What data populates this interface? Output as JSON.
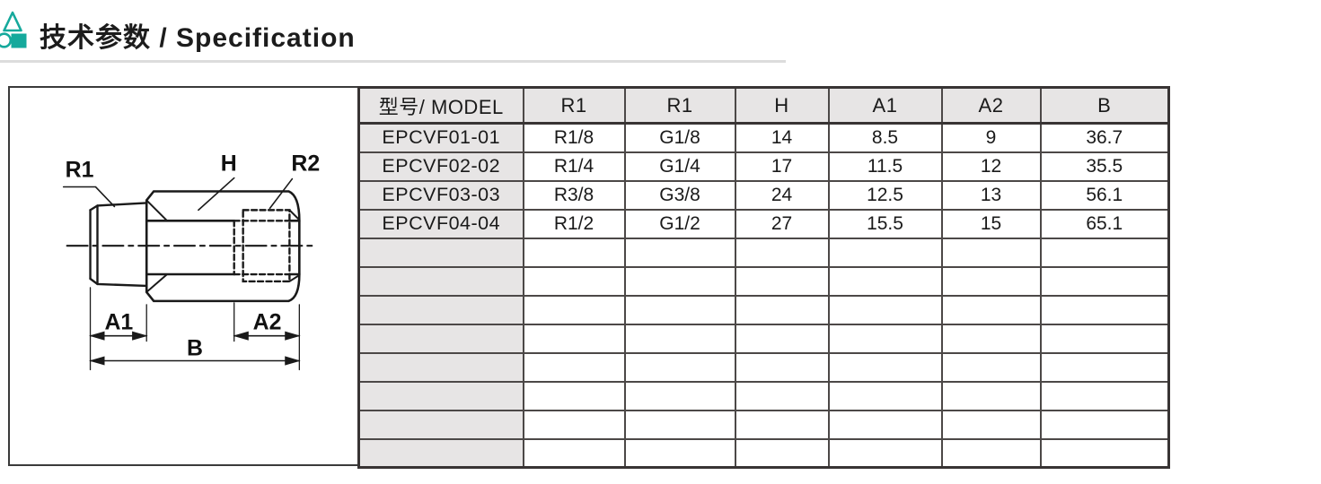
{
  "header": {
    "title": "技术参数 / Specification",
    "icon": "triangle-circle-square-logo-icon",
    "accent_color": "#15a99c"
  },
  "diagram": {
    "type": "technical-drawing",
    "description": "Side view of a pneumatic check-valve fitting: male taper thread R1, hex body H, hidden female thread R2 (dashed), with dimensions A1, A2 and overall length B",
    "labels": {
      "r1": "R1",
      "h": "H",
      "r2": "R2",
      "a1": "A1",
      "a2": "A2",
      "b": "B"
    }
  },
  "table": {
    "columns": [
      "型号/ MODEL",
      "R1",
      "R1",
      "H",
      "A1",
      "A2",
      "B"
    ],
    "rows": [
      [
        "EPCVF01-01",
        "R1/8",
        "G1/8",
        "14",
        "8.5",
        "9",
        "36.7"
      ],
      [
        "EPCVF02-02",
        "R1/4",
        "G1/4",
        "17",
        "11.5",
        "12",
        "35.5"
      ],
      [
        "EPCVF03-03",
        "R3/8",
        "G3/8",
        "24",
        "12.5",
        "13",
        "56.1"
      ],
      [
        "EPCVF04-04",
        "R1/2",
        "G1/2",
        "27",
        "15.5",
        "15",
        "65.1"
      ]
    ],
    "empty_row_count": 8
  }
}
